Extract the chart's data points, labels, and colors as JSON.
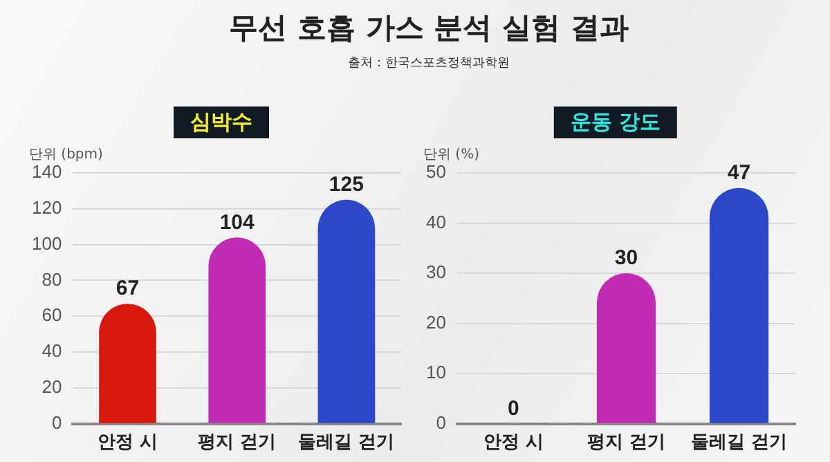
{
  "chart_data": [
    {
      "type": "bar",
      "title": "무선 호흡 가스 분석 실험 결과",
      "subtitle": "심박수",
      "annotations": [
        "출처 : 한국스포츠정책과학원"
      ],
      "ylabel": "단위 (bpm)",
      "categories": [
        "안정 시",
        "평지 걷기",
        "둘레길 걷기"
      ],
      "values": [
        67,
        104,
        125
      ],
      "colors": [
        "#d8180c",
        "#c22cb4",
        "#2c48c8"
      ],
      "ylim": [
        0,
        140
      ],
      "yticks": [
        0,
        20,
        40,
        60,
        80,
        100,
        120,
        140
      ],
      "grid": "y",
      "data_labels": true
    },
    {
      "type": "bar",
      "title": "운동 강도",
      "ylabel": "단위 (%)",
      "categories": [
        "안정 시",
        "평지 걷기",
        "둘레길 걷기"
      ],
      "values": [
        0,
        30,
        47
      ],
      "colors": [
        "#d8180c",
        "#c22cb4",
        "#2c48c8"
      ],
      "ylim": [
        0,
        50
      ],
      "yticks": [
        0,
        10,
        20,
        30,
        40,
        50
      ],
      "grid": "y",
      "data_labels": true
    }
  ]
}
